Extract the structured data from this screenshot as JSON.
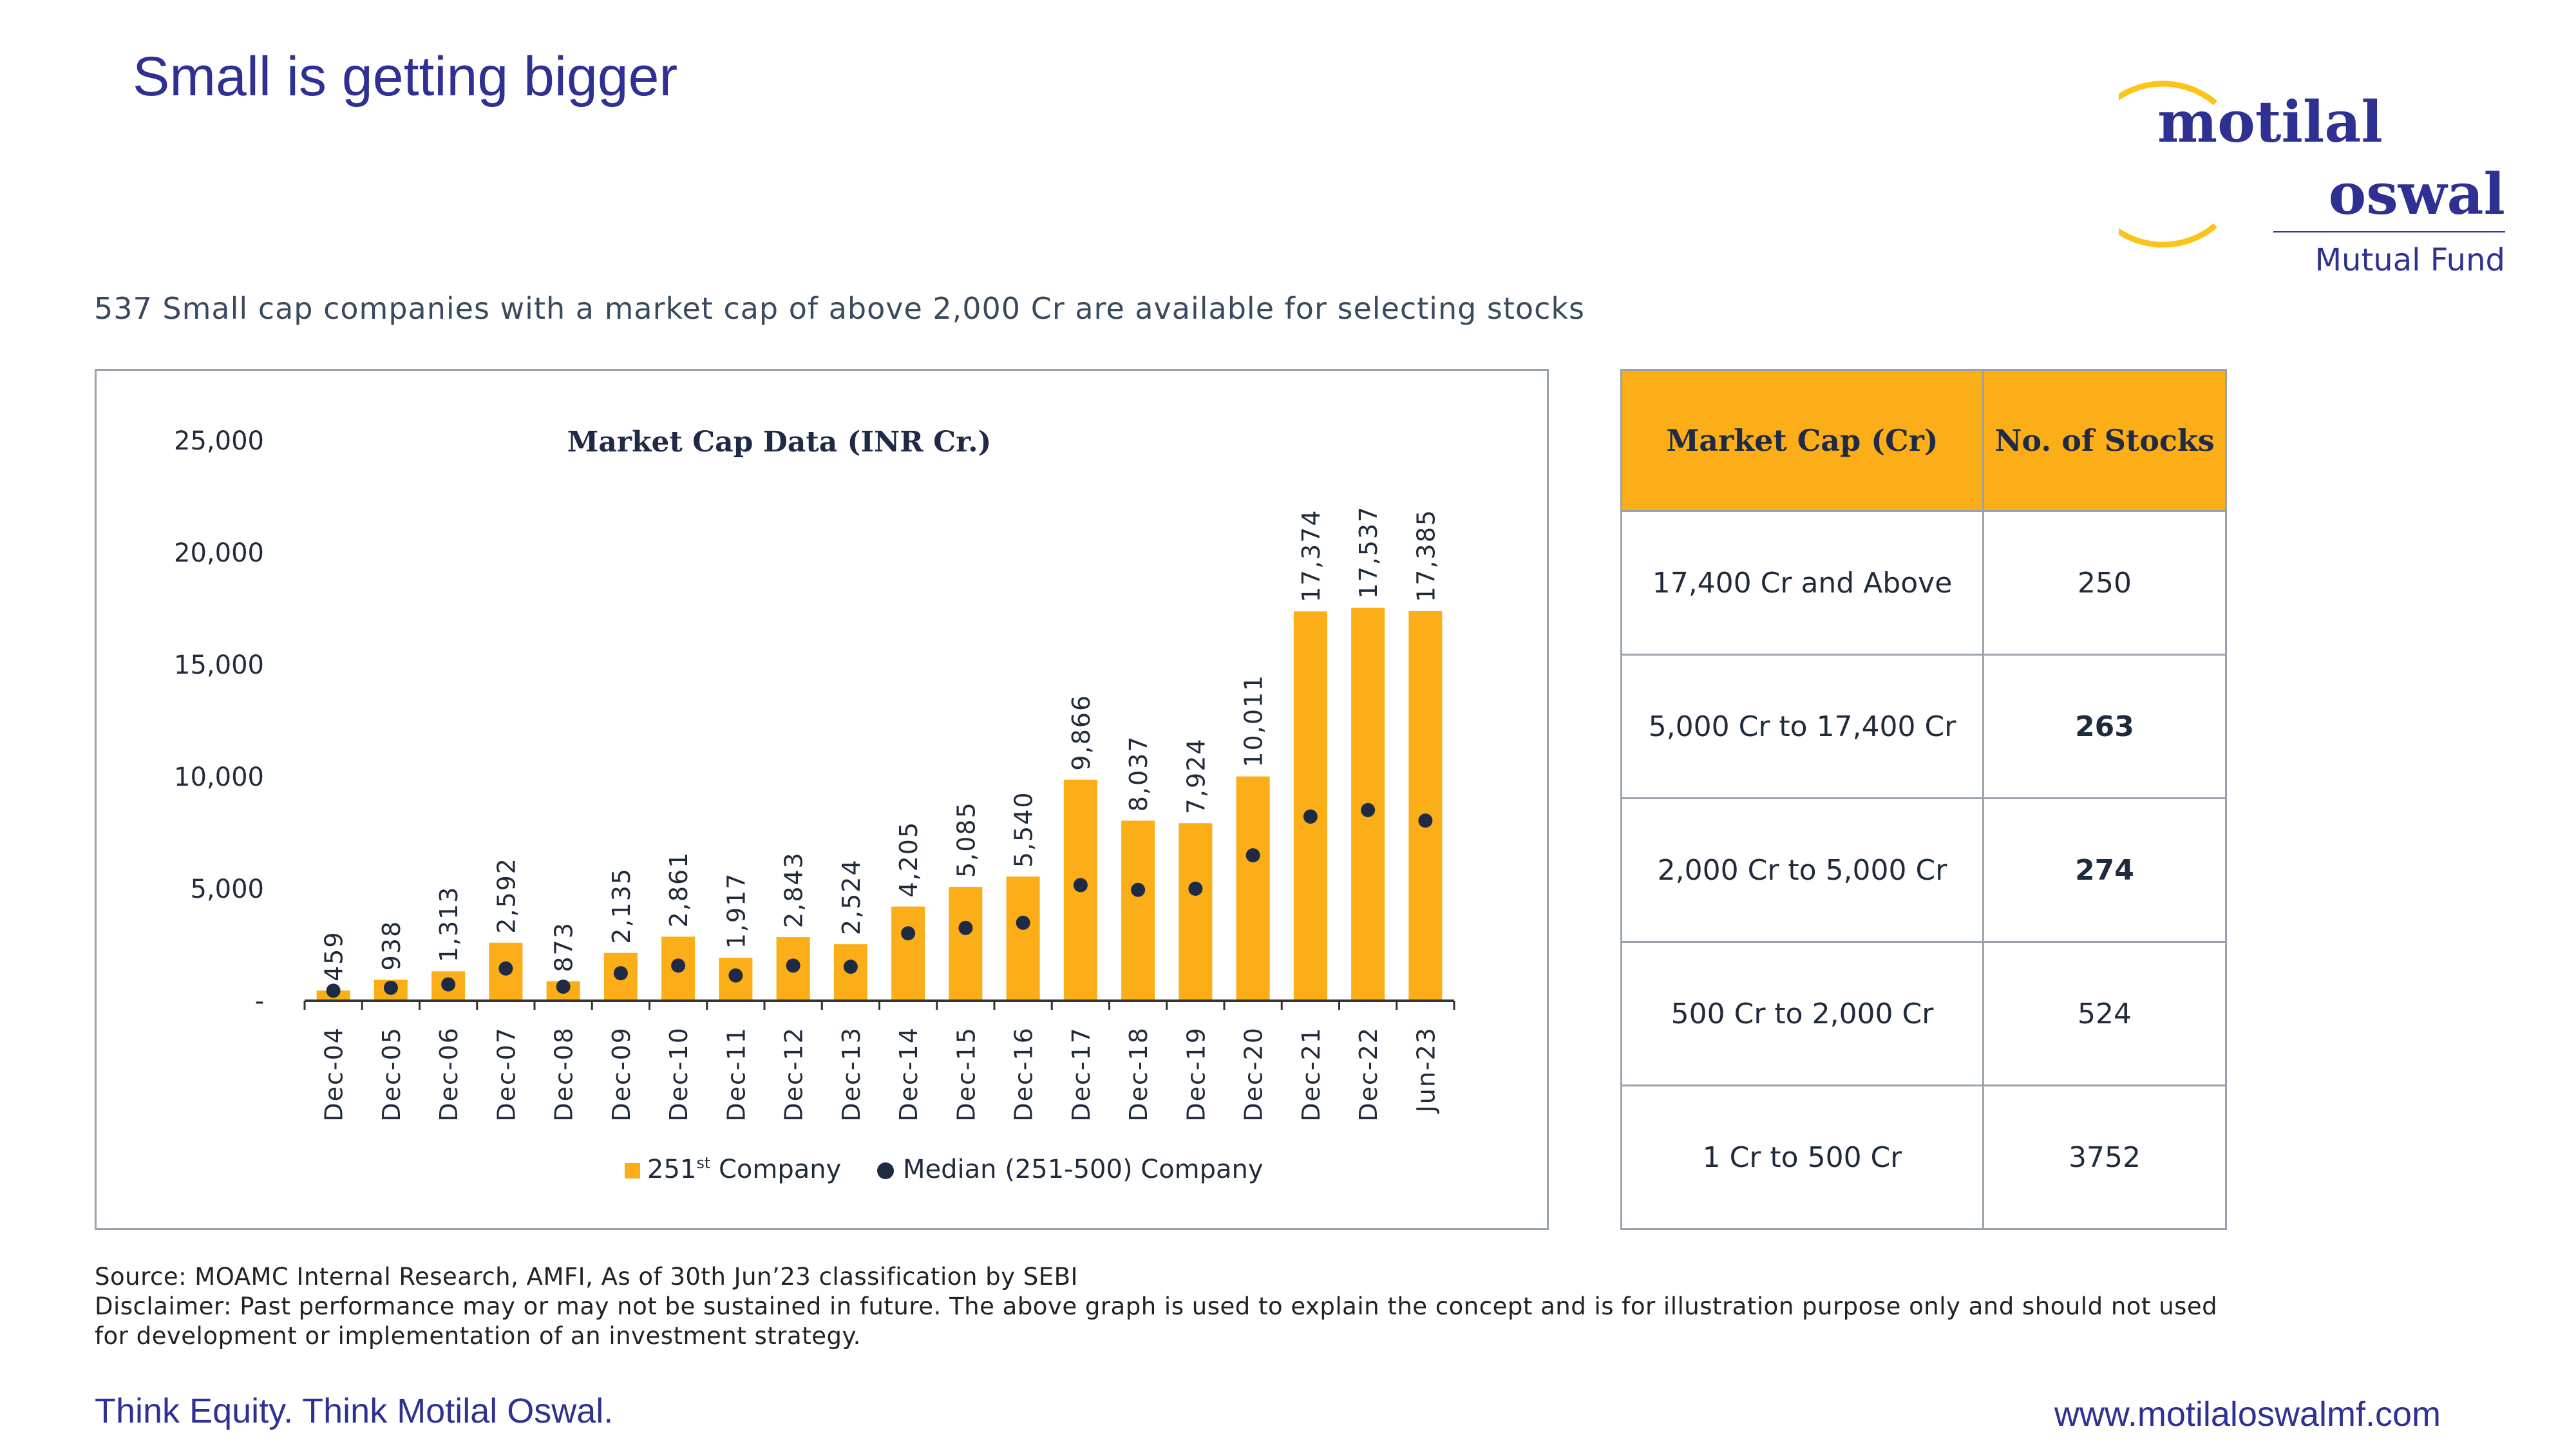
{
  "header": {
    "title": "Small is getting bigger",
    "subtitle": "537 Small cap companies with a market cap of above 2,000 Cr are available for selecting stocks"
  },
  "logo": {
    "line1": "motilal",
    "line2": "oswal",
    "line3": "Mutual Fund"
  },
  "colors": {
    "bar": "#fbae17",
    "dot": "#1f2a44",
    "brand": "#2e3192",
    "table_header": "#fbae17"
  },
  "chart_data": {
    "type": "bar",
    "title": "Market Cap Data (INR Cr.)",
    "categories": [
      "Dec-04",
      "Dec-05",
      "Dec-06",
      "Dec-07",
      "Dec-08",
      "Dec-09",
      "Dec-10",
      "Dec-11",
      "Dec-12",
      "Dec-13",
      "Dec-14",
      "Dec-15",
      "Dec-16",
      "Dec-17",
      "Dec-18",
      "Dec-19",
      "Dec-20",
      "Dec-21",
      "Dec-22",
      "Jun-23"
    ],
    "series": [
      {
        "name": "251st Company",
        "kind": "bar",
        "values": [
          459,
          938,
          1313,
          2592,
          873,
          2135,
          2861,
          1917,
          2843,
          2524,
          4205,
          5085,
          5540,
          9866,
          8037,
          7924,
          10011,
          17374,
          17537,
          17385
        ],
        "labels": [
          "459",
          "938",
          "1,313",
          "2,592",
          "873",
          "2,135",
          "2,861",
          "1,917",
          "2,843",
          "2,524",
          "4,205",
          "5,085",
          "5,540",
          "9,866",
          "8,037",
          "7,924",
          "10,011",
          "17,374",
          "17,537",
          "17,385"
        ]
      },
      {
        "name": "Median (251-500) Company",
        "kind": "dot",
        "values": [
          450,
          580,
          730,
          1440,
          630,
          1230,
          1570,
          1130,
          1570,
          1520,
          3010,
          3250,
          3480,
          5160,
          4950,
          5000,
          6490,
          8220,
          8510,
          8040
        ]
      }
    ],
    "ylim": [
      0,
      25000
    ],
    "yticks": [
      0,
      5000,
      10000,
      15000,
      20000,
      25000
    ],
    "ytick_labels": [
      "-",
      "5,000",
      "10,000",
      "15,000",
      "20,000",
      "25,000"
    ],
    "legend": {
      "placement": "bottom",
      "items": [
        {
          "main": "251",
          "sup": "st",
          "rest": " Company"
        },
        {
          "main": "Median (251-500) Company"
        }
      ]
    },
    "grid": false
  },
  "table": {
    "headers": [
      "Market Cap (Cr)",
      "No. of Stocks"
    ],
    "rows": [
      {
        "range": "17,400 Cr and Above",
        "count": "250",
        "bold": false
      },
      {
        "range": "5,000 Cr to 17,400 Cr",
        "count": "263",
        "bold": true
      },
      {
        "range": "2,000 Cr to 5,000 Cr",
        "count": "274",
        "bold": true
      },
      {
        "range": "500 Cr to 2,000 Cr",
        "count": "524",
        "bold": false
      },
      {
        "range": "1 Cr to 500 Cr",
        "count": "3752",
        "bold": false
      }
    ]
  },
  "footer": {
    "source": "Source: MOAMC Internal Research, AMFI, As of 30th Jun’23 classification by SEBI",
    "disclaimer": "Disclaimer: Past performance may or may not be sustained in future. The above graph is used to explain the concept and is for illustration purpose only and should not used for development or implementation of an investment strategy.",
    "tagline": "Think Equity. Think Motilal Oswal.",
    "url": "www.motilaloswalmf.com"
  }
}
